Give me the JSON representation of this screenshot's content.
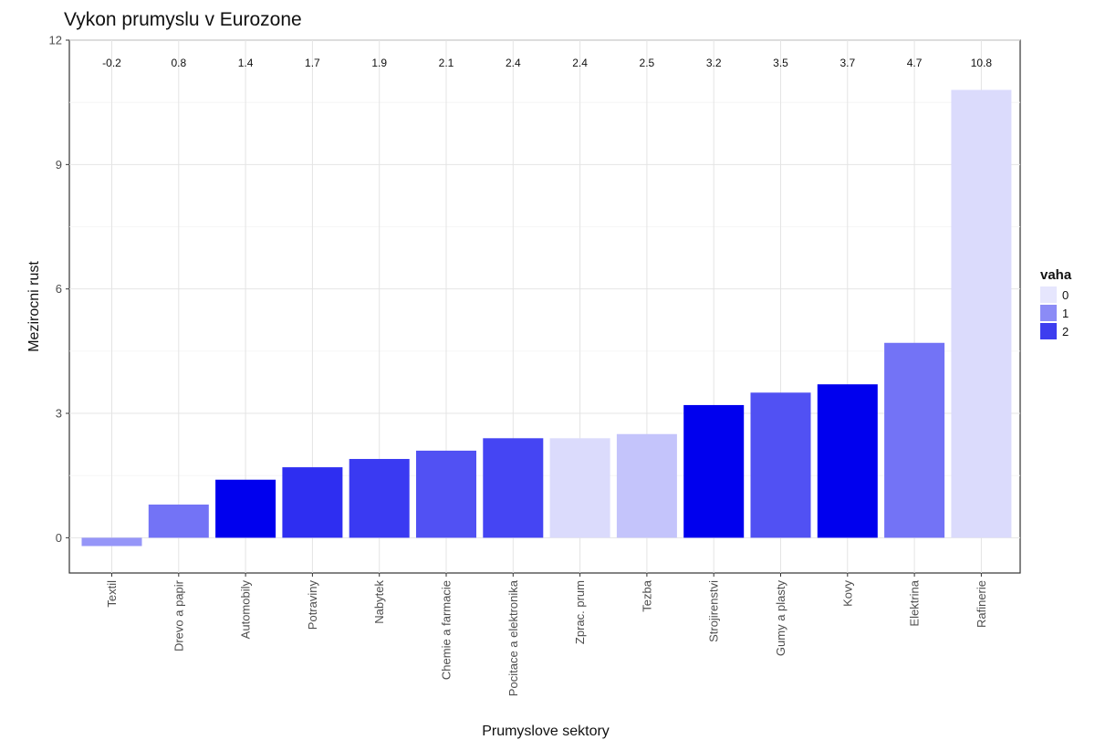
{
  "chart_data": {
    "type": "bar",
    "title": "Vykon prumyslu v Eurozone",
    "xlabel": "Prumyslove sektory",
    "ylabel": "Mezirocni rust",
    "ylim": [
      -0.85,
      12.0
    ],
    "yticks": [
      0,
      3,
      6,
      9,
      12
    ],
    "grid": true,
    "categories": [
      "Textil",
      "Drevo a papir",
      "Automobily",
      "Potraviny",
      "Nabytek",
      "Chemie a farmacie",
      "Pocitace a elektronika",
      "Zprac. prum",
      "Tezba",
      "Strojirenstvi",
      "Gumy a plasty",
      "Kovy",
      "Elektrina",
      "Rafinerie"
    ],
    "values": [
      -0.2,
      0.8,
      1.4,
      1.7,
      1.9,
      2.1,
      2.4,
      2.4,
      2.5,
      3.2,
      3.5,
      3.7,
      4.7,
      10.8
    ],
    "data_labels": [
      "-0.2",
      "0.8",
      "1.4",
      "1.7",
      "1.9",
      "2.1",
      "2.4",
      "2.4",
      "2.5",
      "3.2",
      "3.5",
      "3.7",
      "4.7",
      "10.8"
    ],
    "weights": [
      0.7,
      1.0,
      2.0,
      1.6,
      1.5,
      1.3,
      1.4,
      0.1,
      0.3,
      2.0,
      1.3,
      2.0,
      1.0,
      0.1
    ],
    "color_scale": {
      "low": "#e6e6fd",
      "high": "#0000ee",
      "min": 0,
      "max": 2
    },
    "legend": {
      "title": "vaha",
      "position": "right",
      "items": [
        {
          "label": "0",
          "color": "#e6e6fd"
        },
        {
          "label": "1",
          "color": "#8b8bf6"
        },
        {
          "label": "2",
          "color": "#3d3def"
        }
      ]
    }
  }
}
